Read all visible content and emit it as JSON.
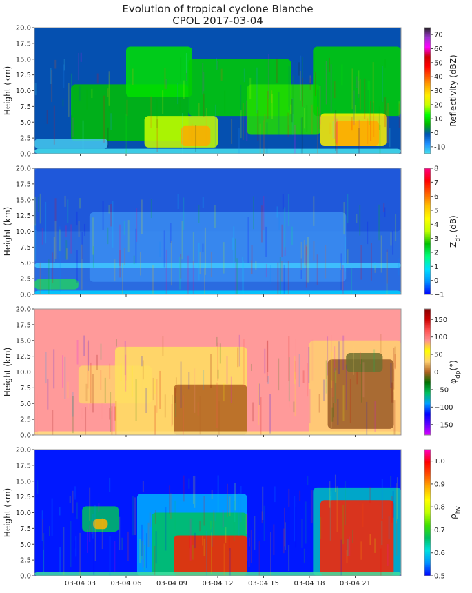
{
  "title_line1": "Evolution of tropical cyclone Blanche",
  "title_line2": "CPOL 2017-03-04",
  "chart_data": [
    {
      "type": "heatmap",
      "name": "reflectivity",
      "ylabel": "Height (km)",
      "ylim": [
        0,
        20
      ],
      "yticks": [
        "0.0",
        "2.5",
        "5.0",
        "7.5",
        "10.0",
        "12.5",
        "15.0",
        "17.5",
        "20.0"
      ],
      "xticks": [],
      "colorbar": {
        "label": "Reflectivity (dBZ)",
        "range": [
          -15,
          75
        ],
        "ticks": [
          "-10",
          "0",
          "10",
          "20",
          "30",
          "40",
          "50",
          "60",
          "70"
        ],
        "tick_values": [
          -10,
          0,
          10,
          20,
          30,
          40,
          50,
          60,
          70
        ],
        "colors": [
          "#46e1ee",
          "#1e90ff",
          "#0052b4",
          "#00b400",
          "#00ff00",
          "#c8ff00",
          "#ffee00",
          "#ffaa00",
          "#ff5500",
          "#ff0000",
          "#cc0000",
          "#ff00ff",
          "#9933cc",
          "#222222"
        ]
      },
      "background": "#0550b0"
    },
    {
      "type": "heatmap",
      "name": "differential-reflectivity",
      "ylabel": "Height (km)",
      "ylim": [
        0,
        20
      ],
      "yticks": [
        "0.0",
        "2.5",
        "5.0",
        "7.5",
        "10.0",
        "12.5",
        "15.0",
        "17.5",
        "20.0"
      ],
      "xticks": [],
      "colorbar": {
        "label": "Z_dr (dB)",
        "label_main": "Z",
        "label_sub": "dr",
        "label_unit": " (dB)",
        "range": [
          -1,
          8
        ],
        "ticks": [
          "−1",
          "0",
          "1",
          "2",
          "3",
          "4",
          "5",
          "6",
          "7",
          "8"
        ],
        "tick_values": [
          -1,
          0,
          1,
          2,
          3,
          4,
          5,
          6,
          7,
          8
        ],
        "colors": [
          "#0000ff",
          "#0090ff",
          "#00e0ff",
          "#00ff80",
          "#00c000",
          "#c0ff00",
          "#ffff00",
          "#ffc000",
          "#ff6000",
          "#ff0000",
          "#ff0080"
        ]
      },
      "background": "#2a6be0"
    },
    {
      "type": "heatmap",
      "name": "differential-phase",
      "ylabel": "Height (km)",
      "ylim": [
        0,
        20
      ],
      "yticks": [
        "0.0",
        "2.5",
        "5.0",
        "7.5",
        "10.0",
        "12.5",
        "15.0",
        "17.5",
        "20.0"
      ],
      "xticks": [],
      "colorbar": {
        "label": "φ_dp (°)",
        "label_main": "φ",
        "label_sub": "dp",
        "label_unit": "(°)",
        "range": [
          -180,
          180
        ],
        "ticks": [
          "−150",
          "−100",
          "−50",
          "0",
          "50",
          "100",
          "150"
        ],
        "tick_values": [
          -150,
          -100,
          -50,
          0,
          50,
          100,
          150
        ],
        "colors": [
          "#e000ff",
          "#6000ff",
          "#0000ff",
          "#00a0ff",
          "#00c060",
          "#007000",
          "#b06020",
          "#ffd070",
          "#ffff00",
          "#ff9090",
          "#ff5050",
          "#cc0000",
          "#880000"
        ]
      },
      "background": "#ff9a9a"
    },
    {
      "type": "heatmap",
      "name": "correlation-coefficient",
      "ylabel": "Height (km)",
      "ylim": [
        0,
        20
      ],
      "yticks": [
        "0.0",
        "2.5",
        "5.0",
        "7.5",
        "10.0",
        "12.5",
        "15.0",
        "17.5",
        "20.0"
      ],
      "xticks": [
        "03-04 03",
        "03-04 06",
        "03-04 09",
        "03-04 12",
        "03-04 15",
        "03-04 18",
        "03-04 21"
      ],
      "colorbar": {
        "label": "ρ_hv",
        "label_main": "ρ",
        "label_sub": "hv",
        "label_unit": "",
        "range": [
          0.5,
          1.05
        ],
        "ticks": [
          "0.5",
          "0.6",
          "0.7",
          "0.8",
          "0.9",
          "1.0"
        ],
        "tick_values": [
          0.5,
          0.6,
          0.7,
          0.8,
          0.9,
          1.0
        ],
        "colors": [
          "#0000ff",
          "#0090ff",
          "#00e0e0",
          "#00c060",
          "#40e000",
          "#c0ff00",
          "#ffff00",
          "#ffb000",
          "#ff5000",
          "#ff0000",
          "#ff00c0"
        ]
      },
      "background": "#0018ff"
    }
  ]
}
